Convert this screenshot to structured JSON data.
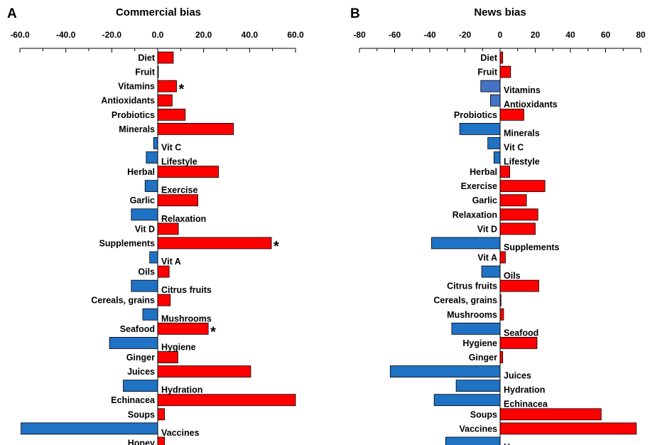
{
  "chart_data": [
    {
      "type": "bar",
      "orientation": "horizontal",
      "panel": "A",
      "title": "Commercial bias",
      "xlim": [
        -60,
        60
      ],
      "xticks": [
        "-60.0",
        "-40.0",
        "-20.0",
        "0.0",
        "20.0",
        "40.0",
        "60.0"
      ],
      "categories": [
        "Diet",
        "Fruit",
        "Vitamins",
        "Antioxidants",
        "Probiotics",
        "Minerals",
        "Vit C",
        "Lifestyle",
        "Herbal",
        "Exercise",
        "Garlic",
        "Relaxation",
        "Vit D",
        "Supplements",
        "Vit A",
        "Oils",
        "Citrus fruits",
        "Cereals, grains",
        "Mushrooms",
        "Seafood",
        "Hygiene",
        "Ginger",
        "Juices",
        "Hydration",
        "Echinacea",
        "Soups",
        "Vaccines",
        "Honey"
      ],
      "values": [
        6.8,
        0.3,
        8.2,
        6.3,
        12.0,
        33.0,
        -1.8,
        -5.0,
        26.5,
        -5.5,
        17.5,
        -11.5,
        9.0,
        49.5,
        -3.5,
        5.0,
        -11.5,
        5.5,
        -6.5,
        22.0,
        -21.0,
        8.8,
        40.5,
        -15.0,
        60.0,
        3.0,
        -59.5,
        3.0
      ],
      "annotations": [
        {
          "category": "Vitamins",
          "text": "*"
        },
        {
          "category": "Supplements",
          "text": "*"
        },
        {
          "category": "Seafood",
          "text": "*"
        }
      ],
      "colors": {
        "positive": "#ff0000",
        "negative": "#1f72c4"
      }
    },
    {
      "type": "bar",
      "orientation": "horizontal",
      "panel": "B",
      "title": "News bias",
      "xlim": [
        -80,
        80
      ],
      "xticks": [
        "-80",
        "-60",
        "-40",
        "-20",
        "0",
        "20",
        "40",
        "60",
        "80"
      ],
      "categories": [
        "Diet",
        "Fruit",
        "Vitamins",
        "Antioxidants",
        "Probiotics",
        "Minerals",
        "Vit C",
        "Lifestyle",
        "Herbal",
        "Exercise",
        "Garlic",
        "Relaxation",
        "Vit D",
        "Supplements",
        "Vit A",
        "Oils",
        "Citrus fruits",
        "Cereals, grains",
        "Mushrooms",
        "Seafood",
        "Hygiene",
        "Ginger",
        "Juices",
        "Hydration",
        "Echinacea",
        "Soups",
        "Vaccines",
        "Honey"
      ],
      "values": [
        1.5,
        6.0,
        -11.0,
        -5.5,
        13.5,
        -23.0,
        -7.0,
        -3.5,
        5.5,
        25.5,
        15.0,
        21.5,
        20.0,
        -39.0,
        3.0,
        -10.5,
        22.0,
        0.5,
        2.0,
        -27.5,
        21.0,
        1.5,
        -62.5,
        -25.0,
        -37.5,
        57.5,
        77.5,
        -31.0
      ],
      "colors": {
        "positive": "#ff0000",
        "negative": "#1f72c4",
        "negative_light": "#4472c4"
      }
    }
  ]
}
